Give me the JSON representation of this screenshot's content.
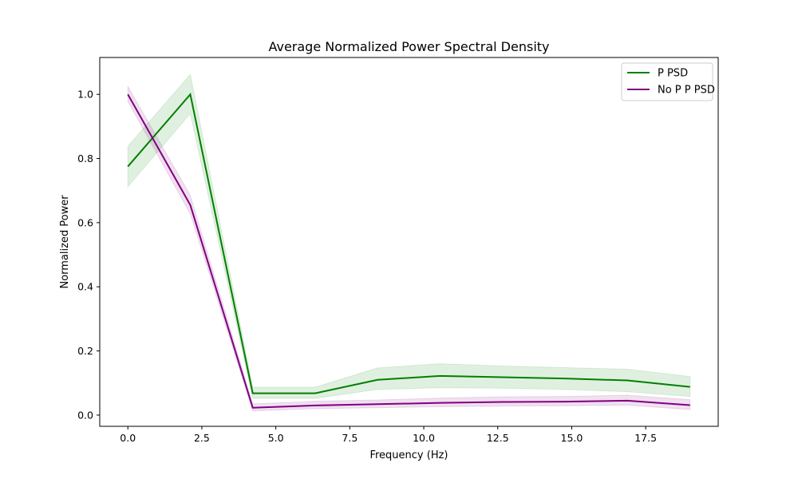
{
  "chart_data": {
    "type": "line",
    "title": "Average Normalized Power Spectral Density",
    "xlabel": "Frequency (Hz)",
    "ylabel": "Normalized Power",
    "xlim": [
      -0.95,
      19.95
    ],
    "ylim": [
      -0.035,
      1.115
    ],
    "xticks": [
      0.0,
      2.5,
      5.0,
      7.5,
      10.0,
      12.5,
      15.0,
      17.5
    ],
    "xtick_labels": [
      "0.0",
      "2.5",
      "5.0",
      "7.5",
      "10.0",
      "12.5",
      "15.0",
      "17.5"
    ],
    "yticks": [
      0.0,
      0.2,
      0.4,
      0.6,
      0.8,
      1.0
    ],
    "ytick_labels": [
      "0.0",
      "0.2",
      "0.4",
      "0.6",
      "0.8",
      "1.0"
    ],
    "grid": false,
    "legend_position": "top-right",
    "x": [
      0.0,
      2.11,
      4.22,
      6.33,
      8.44,
      10.55,
      12.66,
      14.77,
      16.88,
      19.0
    ],
    "series": [
      {
        "name": "P PSD",
        "color": "#008000",
        "values": [
          0.775,
          1.0,
          0.068,
          0.068,
          0.11,
          0.122,
          0.118,
          0.114,
          0.108,
          0.088
        ],
        "lower": [
          0.712,
          0.94,
          0.052,
          0.052,
          0.08,
          0.085,
          0.084,
          0.08,
          0.073,
          0.058
        ],
        "upper": [
          0.838,
          1.062,
          0.087,
          0.087,
          0.147,
          0.16,
          0.153,
          0.148,
          0.143,
          0.12
        ]
      },
      {
        "name": "No P P PSD",
        "color": "#800080",
        "values": [
          1.0,
          0.655,
          0.023,
          0.03,
          0.034,
          0.038,
          0.041,
          0.042,
          0.045,
          0.031
        ],
        "lower": [
          0.978,
          0.627,
          0.013,
          0.02,
          0.023,
          0.026,
          0.028,
          0.029,
          0.031,
          0.017
        ],
        "upper": [
          1.025,
          0.685,
          0.035,
          0.043,
          0.047,
          0.053,
          0.057,
          0.058,
          0.062,
          0.048
        ]
      }
    ]
  }
}
